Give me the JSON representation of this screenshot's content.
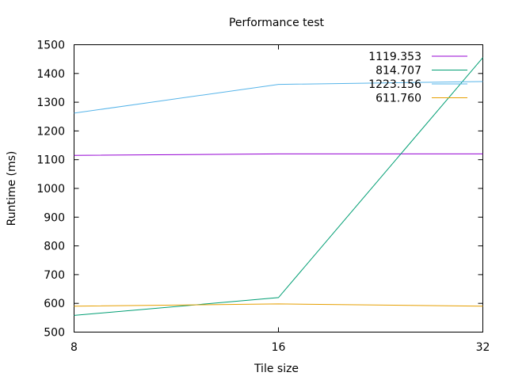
{
  "chart_data": {
    "type": "line",
    "title": "Performance test",
    "xlabel": "Tile size",
    "ylabel": "Runtime (ms)",
    "x": [
      8,
      16,
      32
    ],
    "x_scale": "log2",
    "x_ticks": [
      "8",
      "16",
      "32"
    ],
    "xlim": [
      8,
      32
    ],
    "ylim": [
      500,
      1500
    ],
    "y_ticks": [
      "500",
      "600",
      "700",
      "800",
      "900",
      "1000",
      "1100",
      "1200",
      "1300",
      "1400",
      "1500"
    ],
    "grid": false,
    "legend_position": "top-right",
    "series": [
      {
        "name": "1119.353",
        "color": "#9400d3",
        "values": [
          1115,
          1120,
          1120
        ]
      },
      {
        "name": "814.707",
        "color": "#009e73",
        "values": [
          558,
          620,
          1455
        ]
      },
      {
        "name": "1223.156",
        "color": "#56b4e9",
        "values": [
          1262,
          1362,
          1372
        ]
      },
      {
        "name": "611.760",
        "color": "#e69f00",
        "values": [
          590,
          598,
          590
        ]
      }
    ]
  }
}
